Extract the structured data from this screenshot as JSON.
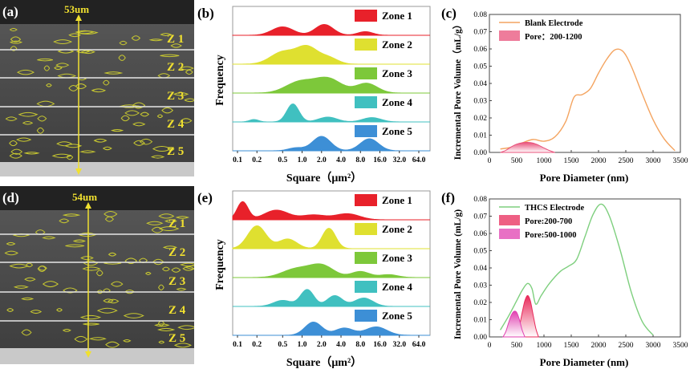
{
  "chart_data": [
    {
      "panel": "(a)",
      "type": "image",
      "thickness_label": "53um",
      "zones": [
        "Z 1",
        "Z 2",
        "Z 3",
        "Z 4",
        "Z 5"
      ]
    },
    {
      "panel": "(b)",
      "type": "area",
      "ylabel": "Frequency",
      "xlabel": "Square（μm²）",
      "xticks": [
        "0.1",
        "0.2",
        "0.5",
        "1.0",
        "2.0",
        "4.0",
        "8.0",
        "16.0",
        "32.0",
        "64.0"
      ],
      "series": [
        {
          "name": "Zone 1",
          "color": "#e8212a",
          "peaks": [
            [
              0.5,
              0.35,
              0.35
            ],
            [
              2.2,
              0.45,
              0.3
            ],
            [
              9.5,
              0.15,
              0.25
            ]
          ]
        },
        {
          "name": "Zone 2",
          "color": "#dfe030",
          "peaks": [
            [
              0.5,
              0.5,
              0.4
            ],
            [
              1.2,
              0.7,
              0.35
            ],
            [
              2.6,
              0.25,
              0.3
            ]
          ]
        },
        {
          "name": "Zone 3",
          "color": "#7dc83a",
          "peaks": [
            [
              0.9,
              0.45,
              0.45
            ],
            [
              2.5,
              0.6,
              0.45
            ],
            [
              10,
              0.4,
              0.35
            ]
          ]
        },
        {
          "name": "Zone 4",
          "color": "#40c0c0",
          "peaks": [
            [
              0.18,
              0.1,
              0.15
            ],
            [
              0.72,
              0.75,
              0.2
            ],
            [
              2.5,
              0.2,
              0.3
            ],
            [
              12,
              0.18,
              0.3
            ]
          ]
        },
        {
          "name": "Zone 5",
          "color": "#3d8fd6",
          "peaks": [
            [
              0.8,
              0.12,
              0.25
            ],
            [
              2.0,
              0.6,
              0.3
            ],
            [
              11,
              0.5,
              0.3
            ]
          ]
        }
      ]
    },
    {
      "panel": "(c)",
      "type": "line",
      "xlabel": "Pore Diameter   (nm)",
      "ylabel": "Incremental Pore Volume（mL/g）",
      "xlim": [
        0,
        3500
      ],
      "ylim": [
        0,
        0.08
      ],
      "xticks": [
        "0",
        "500",
        "1000",
        "1500",
        "2000",
        "2500",
        "3000",
        "3500"
      ],
      "yticks": [
        "0.00",
        "0.01",
        "0.02",
        "0.03",
        "0.04",
        "0.05",
        "0.06",
        "0.07",
        "0.08"
      ],
      "series": [
        {
          "name": "Blank Electrode",
          "color": "#f4a460",
          "x": [
            200,
            400,
            600,
            800,
            1000,
            1200,
            1400,
            1550,
            1700,
            1850,
            2000,
            2150,
            2300,
            2450,
            2600,
            2800,
            3000,
            3200,
            3400
          ],
          "y": [
            0.002,
            0.003,
            0.0055,
            0.0075,
            0.0065,
            0.009,
            0.018,
            0.032,
            0.0335,
            0.037,
            0.046,
            0.054,
            0.0595,
            0.0585,
            0.05,
            0.034,
            0.019,
            0.008,
            0.001
          ]
        },
        {
          "name": "Pore：200-1200",
          "color": "#e8507a",
          "fill": true,
          "x": [
            200,
            300,
            400,
            500,
            600,
            700,
            800,
            900,
            1000,
            1100,
            1200
          ],
          "y": [
            0,
            0.0012,
            0.0032,
            0.0048,
            0.0056,
            0.0058,
            0.0054,
            0.0042,
            0.0026,
            0.0011,
            0
          ]
        }
      ]
    },
    {
      "panel": "(d)",
      "type": "image",
      "thickness_label": "54um",
      "zones": [
        "Z 1",
        "Z 2",
        "Z 3",
        "Z 4",
        "Z 5"
      ]
    },
    {
      "panel": "(e)",
      "type": "area",
      "ylabel": "Frequency",
      "xlabel": "Square（μm²）",
      "xticks": [
        "0.1",
        "0.2",
        "0.5",
        "1.0",
        "2.0",
        "4.0",
        "8.0",
        "16.0",
        "32.0",
        "64.0"
      ],
      "series": [
        {
          "name": "Zone 1",
          "color": "#e8212a",
          "peaks": [
            [
              0.12,
              0.75,
              0.18
            ],
            [
              0.4,
              0.4,
              0.4
            ],
            [
              1.5,
              0.2,
              0.4
            ],
            [
              5,
              0.25,
              0.4
            ]
          ]
        },
        {
          "name": "Zone 2",
          "color": "#dfe030",
          "peaks": [
            [
              0.2,
              0.95,
              0.3
            ],
            [
              0.6,
              0.4,
              0.3
            ],
            [
              2.6,
              0.85,
              0.22
            ]
          ]
        },
        {
          "name": "Zone 3",
          "color": "#7dc83a",
          "peaks": [
            [
              0.8,
              0.35,
              0.45
            ],
            [
              2.0,
              0.5,
              0.4
            ],
            [
              8,
              0.25,
              0.3
            ],
            [
              22,
              0.12,
              0.3
            ]
          ]
        },
        {
          "name": "Zone 4",
          "color": "#40c0c0",
          "peaks": [
            [
              0.5,
              0.25,
              0.3
            ],
            [
              1.2,
              0.7,
              0.22
            ],
            [
              3.2,
              0.45,
              0.25
            ],
            [
              9,
              0.35,
              0.3
            ]
          ]
        },
        {
          "name": "Zone 5",
          "color": "#3d8fd6",
          "peaks": [
            [
              1.5,
              0.55,
              0.28
            ],
            [
              4.5,
              0.3,
              0.3
            ],
            [
              14,
              0.35,
              0.35
            ]
          ]
        }
      ]
    },
    {
      "panel": "(f)",
      "type": "line",
      "xlabel": "Pore Diameter (nm)",
      "ylabel": "Incremental Pore Volume (mL/g)",
      "xlim": [
        0,
        3500
      ],
      "ylim": [
        0,
        0.08
      ],
      "xticks": [
        "0",
        "500",
        "1000",
        "1500",
        "2000",
        "2500",
        "3000",
        "3500"
      ],
      "yticks": [
        "0.00",
        "0.01",
        "0.02",
        "0.03",
        "0.04",
        "0.05",
        "0.06",
        "0.07",
        "0.08"
      ],
      "series": [
        {
          "name": "THCS Electrode",
          "color": "#7ecf7e",
          "x": [
            200,
            350,
            500,
            600,
            700,
            780,
            850,
            950,
            1100,
            1300,
            1450,
            1600,
            1750,
            1900,
            2050,
            2200,
            2400,
            2600,
            2800,
            3000
          ],
          "y": [
            0.004,
            0.012,
            0.021,
            0.027,
            0.031,
            0.028,
            0.019,
            0.024,
            0.031,
            0.038,
            0.041,
            0.045,
            0.058,
            0.071,
            0.077,
            0.07,
            0.05,
            0.026,
            0.009,
            0.001
          ]
        },
        {
          "name": "Pore:200-700",
          "color": "#e82a5a",
          "fill": true,
          "x": [
            500,
            550,
            600,
            650,
            700,
            750,
            800,
            850,
            900
          ],
          "y": [
            0,
            0.006,
            0.014,
            0.021,
            0.024,
            0.021,
            0.013,
            0.005,
            0
          ]
        },
        {
          "name": "Pore:500-1000",
          "color": "#e040b0",
          "fill": true,
          "x": [
            250,
            300,
            350,
            400,
            450,
            500,
            550,
            600,
            650
          ],
          "y": [
            0,
            0.003,
            0.008,
            0.0125,
            0.0148,
            0.0142,
            0.01,
            0.004,
            0
          ]
        }
      ]
    }
  ]
}
